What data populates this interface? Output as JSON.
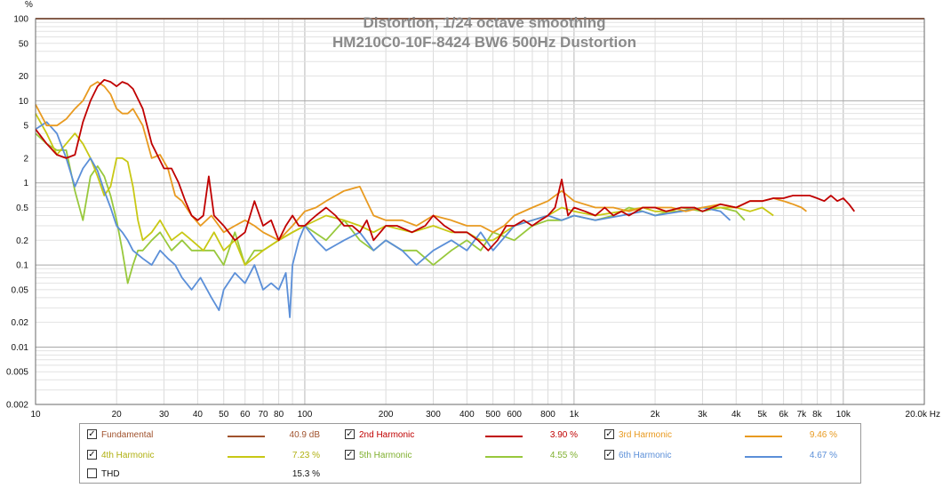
{
  "chart_data": {
    "type": "line",
    "title": "Distortion, 1/24 octave smoothing",
    "subtitle": "HM210C0-10F-8424 BW6 500Hz Dustortion",
    "ylabel": "%",
    "x_scale": "log",
    "y_scale": "log",
    "xlim": [
      10,
      20000
    ],
    "ylim": [
      0.002,
      100
    ],
    "x_ticks": [
      {
        "v": 10,
        "label": "10"
      },
      {
        "v": 20,
        "label": "20"
      },
      {
        "v": 30,
        "label": "30"
      },
      {
        "v": 40,
        "label": "40"
      },
      {
        "v": 50,
        "label": "50"
      },
      {
        "v": 60,
        "label": "60"
      },
      {
        "v": 70,
        "label": "70"
      },
      {
        "v": 80,
        "label": "80"
      },
      {
        "v": 100,
        "label": "100"
      },
      {
        "v": 200,
        "label": "200"
      },
      {
        "v": 300,
        "label": "300"
      },
      {
        "v": 400,
        "label": "400"
      },
      {
        "v": 500,
        "label": "500"
      },
      {
        "v": 600,
        "label": "600"
      },
      {
        "v": 800,
        "label": "800"
      },
      {
        "v": 1000,
        "label": "1k"
      },
      {
        "v": 2000,
        "label": "2k"
      },
      {
        "v": 3000,
        "label": "3k"
      },
      {
        "v": 4000,
        "label": "4k"
      },
      {
        "v": 5000,
        "label": "5k"
      },
      {
        "v": 6000,
        "label": "6k"
      },
      {
        "v": 7000,
        "label": "7k"
      },
      {
        "v": 8000,
        "label": "8k"
      },
      {
        "v": 10000,
        "label": "10k"
      },
      {
        "v": 20000,
        "label": "20.0k Hz"
      }
    ],
    "y_ticks": [
      {
        "v": 100,
        "label": "100"
      },
      {
        "v": 50,
        "label": "50"
      },
      {
        "v": 20,
        "label": "20"
      },
      {
        "v": 10,
        "label": "10"
      },
      {
        "v": 5,
        "label": "5"
      },
      {
        "v": 2,
        "label": "2"
      },
      {
        "v": 1,
        "label": "1"
      },
      {
        "v": 0.5,
        "label": "0.5"
      },
      {
        "v": 0.2,
        "label": "0.2"
      },
      {
        "v": 0.1,
        "label": "0.1"
      },
      {
        "v": 0.05,
        "label": "0.05"
      },
      {
        "v": 0.02,
        "label": "0.02"
      },
      {
        "v": 0.01,
        "label": "0.01"
      },
      {
        "v": 0.005,
        "label": "0.005"
      },
      {
        "v": 0.002,
        "label": "0.002"
      }
    ],
    "grid": true,
    "series": [
      {
        "name": "Fundamental",
        "color": "#a0522d",
        "x": [
          10,
          20000
        ],
        "y": [
          100,
          100
        ]
      },
      {
        "name": "2nd Harmonic",
        "color": "#c00000",
        "x": [
          10,
          11,
          12,
          13,
          14,
          15,
          16,
          17,
          18,
          19,
          20,
          21,
          22,
          23,
          25,
          27,
          30,
          32,
          34,
          36,
          38,
          40,
          42,
          44,
          46,
          50,
          55,
          60,
          65,
          70,
          75,
          80,
          85,
          90,
          95,
          100,
          105,
          110,
          120,
          130,
          140,
          150,
          160,
          170,
          180,
          200,
          220,
          250,
          280,
          300,
          330,
          360,
          400,
          440,
          480,
          520,
          560,
          600,
          650,
          700,
          750,
          800,
          850,
          900,
          950,
          1000,
          1100,
          1200,
          1300,
          1400,
          1500,
          1600,
          1800,
          2000,
          2200,
          2500,
          2800,
          3000,
          3500,
          4000,
          4500,
          5000,
          5500,
          6000,
          6500,
          7000,
          7500,
          8000,
          8500,
          9000,
          9500,
          10000,
          10500,
          11000
        ],
        "y": [
          4.5,
          3,
          2.2,
          2.0,
          2.2,
          5.5,
          10,
          15,
          18,
          17,
          15,
          17,
          16,
          14,
          8,
          3,
          1.5,
          1.5,
          1.0,
          0.6,
          0.4,
          0.35,
          0.4,
          1.2,
          0.4,
          0.3,
          0.2,
          0.25,
          0.6,
          0.3,
          0.35,
          0.2,
          0.3,
          0.4,
          0.3,
          0.3,
          0.35,
          0.4,
          0.5,
          0.4,
          0.3,
          0.3,
          0.25,
          0.35,
          0.2,
          0.3,
          0.3,
          0.25,
          0.3,
          0.4,
          0.3,
          0.25,
          0.25,
          0.2,
          0.15,
          0.2,
          0.3,
          0.3,
          0.35,
          0.3,
          0.35,
          0.4,
          0.5,
          1.1,
          0.4,
          0.5,
          0.45,
          0.4,
          0.5,
          0.4,
          0.45,
          0.4,
          0.5,
          0.5,
          0.45,
          0.5,
          0.5,
          0.45,
          0.55,
          0.5,
          0.6,
          0.6,
          0.65,
          0.65,
          0.7,
          0.7,
          0.7,
          0.65,
          0.6,
          0.7,
          0.6,
          0.65,
          0.55,
          0.45
        ]
      },
      {
        "name": "3rd Harmonic",
        "color": "#e89a20",
        "x": [
          10,
          11,
          12,
          13,
          14,
          15,
          16,
          17,
          18,
          19,
          20,
          21,
          22,
          23,
          25,
          27,
          29,
          31,
          33,
          35,
          38,
          41,
          45,
          50,
          55,
          60,
          65,
          70,
          80,
          90,
          100,
          110,
          120,
          140,
          160,
          180,
          200,
          230,
          260,
          300,
          350,
          400,
          450,
          500,
          550,
          600,
          700,
          800,
          900,
          1000,
          1200,
          1400,
          1600,
          1800,
          2000,
          2300,
          2600,
          3000,
          3500,
          4000,
          4500,
          5000,
          5500,
          6000,
          6500,
          7000,
          7300
        ],
        "y": [
          9,
          5,
          5,
          6,
          8,
          10,
          15,
          17,
          15,
          12,
          8,
          7,
          7,
          8,
          5,
          2,
          2.2,
          1.5,
          0.7,
          0.6,
          0.4,
          0.3,
          0.4,
          0.25,
          0.3,
          0.35,
          0.3,
          0.25,
          0.2,
          0.3,
          0.45,
          0.5,
          0.6,
          0.8,
          0.9,
          0.4,
          0.35,
          0.35,
          0.3,
          0.4,
          0.35,
          0.3,
          0.3,
          0.25,
          0.3,
          0.4,
          0.5,
          0.6,
          0.8,
          0.6,
          0.5,
          0.5,
          0.45,
          0.5,
          0.5,
          0.5,
          0.45,
          0.5,
          0.55,
          0.5,
          0.6,
          0.6,
          0.65,
          0.6,
          0.55,
          0.5,
          0.45
        ]
      },
      {
        "name": "4th Harmonic",
        "color": "#c8c814",
        "x": [
          10,
          11,
          12,
          13,
          14,
          15,
          16,
          17,
          18,
          19,
          20,
          21,
          22,
          23,
          24,
          25,
          27,
          29,
          32,
          35,
          38,
          42,
          46,
          50,
          55,
          60,
          70,
          80,
          90,
          100,
          120,
          140,
          160,
          180,
          200,
          250,
          300,
          350,
          400,
          450,
          500,
          600,
          700,
          800,
          900,
          1000,
          1200,
          1500,
          1800,
          2000,
          2500,
          3000,
          3500,
          4000,
          4500,
          5000,
          5500
        ],
        "y": [
          7,
          4,
          2.2,
          3,
          4.0,
          3,
          2,
          1.2,
          0.7,
          0.9,
          2.0,
          2.0,
          1.8,
          0.9,
          0.35,
          0.2,
          0.25,
          0.35,
          0.2,
          0.25,
          0.2,
          0.15,
          0.25,
          0.15,
          0.2,
          0.1,
          0.15,
          0.2,
          0.25,
          0.3,
          0.4,
          0.35,
          0.3,
          0.25,
          0.3,
          0.25,
          0.3,
          0.25,
          0.25,
          0.2,
          0.2,
          0.3,
          0.35,
          0.4,
          0.5,
          0.45,
          0.4,
          0.45,
          0.5,
          0.45,
          0.45,
          0.5,
          0.5,
          0.5,
          0.45,
          0.5,
          0.4
        ]
      },
      {
        "name": "5th Harmonic",
        "color": "#98c83c",
        "x": [
          10,
          11,
          12,
          13,
          14,
          15,
          16,
          17,
          18,
          19,
          20,
          21,
          22,
          23,
          24,
          25,
          27,
          29,
          32,
          35,
          38,
          42,
          46,
          50,
          55,
          60,
          65,
          70,
          80,
          90,
          100,
          120,
          140,
          160,
          180,
          200,
          230,
          260,
          300,
          350,
          400,
          450,
          500,
          600,
          700,
          800,
          900,
          1000,
          1200,
          1400,
          1600,
          1800,
          2000,
          2500,
          3000,
          3500,
          4000,
          4300
        ],
        "y": [
          4,
          3,
          2.5,
          2.5,
          0.8,
          0.35,
          1.2,
          1.6,
          1.2,
          0.7,
          0.35,
          0.15,
          0.06,
          0.1,
          0.15,
          0.15,
          0.2,
          0.25,
          0.15,
          0.2,
          0.15,
          0.15,
          0.15,
          0.1,
          0.25,
          0.1,
          0.15,
          0.15,
          0.2,
          0.25,
          0.3,
          0.2,
          0.35,
          0.2,
          0.15,
          0.2,
          0.15,
          0.15,
          0.1,
          0.15,
          0.2,
          0.15,
          0.25,
          0.2,
          0.3,
          0.35,
          0.35,
          0.4,
          0.35,
          0.4,
          0.5,
          0.45,
          0.4,
          0.5,
          0.45,
          0.5,
          0.45,
          0.35
        ]
      },
      {
        "name": "6th Harmonic",
        "color": "#5b8fd8",
        "x": [
          10,
          11,
          12,
          13,
          14,
          15,
          16,
          17,
          18,
          19,
          20,
          21,
          22,
          23,
          25,
          27,
          29,
          31,
          33,
          35,
          38,
          41,
          45,
          48,
          50,
          55,
          60,
          65,
          70,
          75,
          80,
          85,
          88,
          90,
          95,
          100,
          110,
          120,
          140,
          160,
          180,
          200,
          230,
          260,
          300,
          350,
          400,
          450,
          500,
          600,
          700,
          800,
          900,
          1000,
          1200,
          1500,
          1800,
          2000,
          2500,
          3000,
          3500,
          3800
        ],
        "y": [
          4.5,
          5.5,
          4,
          2,
          0.9,
          1.5,
          2.0,
          1.4,
          0.8,
          0.5,
          0.3,
          0.25,
          0.2,
          0.15,
          0.12,
          0.1,
          0.15,
          0.12,
          0.1,
          0.07,
          0.05,
          0.07,
          0.04,
          0.028,
          0.05,
          0.08,
          0.06,
          0.1,
          0.05,
          0.06,
          0.05,
          0.08,
          0.023,
          0.1,
          0.2,
          0.3,
          0.2,
          0.15,
          0.2,
          0.25,
          0.15,
          0.2,
          0.15,
          0.1,
          0.15,
          0.2,
          0.15,
          0.25,
          0.15,
          0.3,
          0.35,
          0.4,
          0.35,
          0.4,
          0.35,
          0.4,
          0.45,
          0.4,
          0.45,
          0.5,
          0.45,
          0.35
        ]
      }
    ],
    "legend_placement": "bottom",
    "legend": [
      {
        "name": "Fundamental",
        "checked": true,
        "value": "40.9 dB",
        "color": "#a0522d"
      },
      {
        "name": "2nd Harmonic",
        "checked": true,
        "value": "3.90 %",
        "color": "#c00000"
      },
      {
        "name": "3rd Harmonic",
        "checked": true,
        "value": "9.46 %",
        "color": "#e89a20"
      },
      {
        "name": "4th Harmonic",
        "checked": true,
        "value": "7.23 %",
        "color": "#c8c814"
      },
      {
        "name": "5th Harmonic",
        "checked": true,
        "value": "4.55 %",
        "color": "#98c83c"
      },
      {
        "name": "6th Harmonic",
        "checked": true,
        "value": "4.67 %",
        "color": "#5b8fd8"
      },
      {
        "name": "THD",
        "checked": false,
        "value": "15.3 %",
        "color": ""
      }
    ]
  }
}
